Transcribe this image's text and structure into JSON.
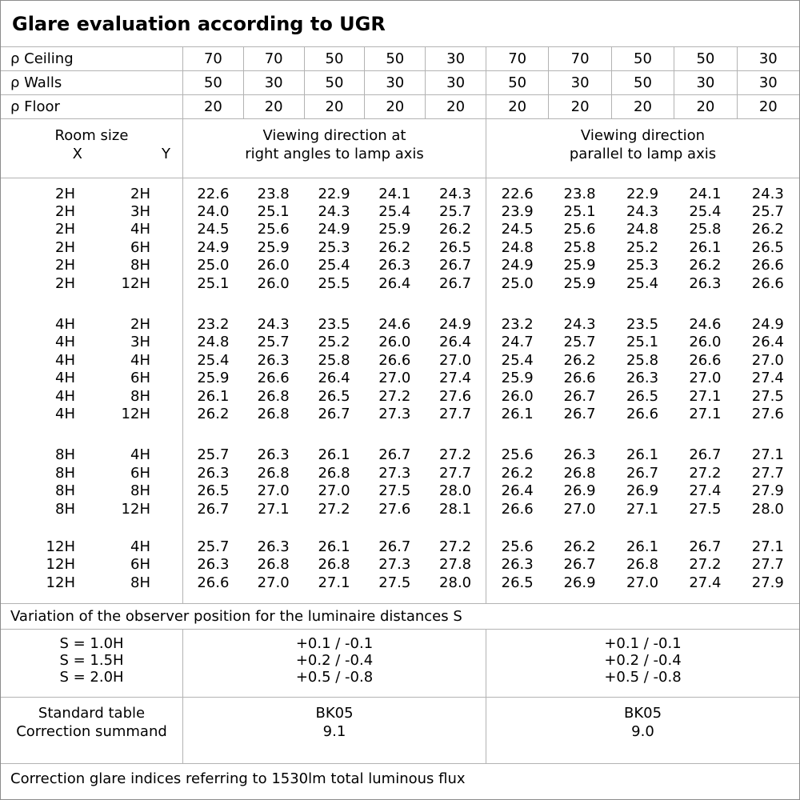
{
  "title": "Glare evaluation according to UGR",
  "colors": {
    "background": "#ffffff",
    "grid_line": "#b3b3b3",
    "outer_border": "#8c8c8c",
    "text": "#000000"
  },
  "reflectance": {
    "rows": [
      {
        "label": "ρ Ceiling",
        "values": [
          "70",
          "70",
          "50",
          "50",
          "30",
          "70",
          "70",
          "50",
          "50",
          "30"
        ]
      },
      {
        "label": "ρ Walls",
        "values": [
          "50",
          "30",
          "50",
          "30",
          "30",
          "50",
          "30",
          "50",
          "30",
          "30"
        ]
      },
      {
        "label": "ρ Floor",
        "values": [
          "20",
          "20",
          "20",
          "20",
          "20",
          "20",
          "20",
          "20",
          "20",
          "20"
        ]
      }
    ]
  },
  "room_header": {
    "room_size": "Room size",
    "x": "X",
    "y": "Y",
    "group1": [
      "Viewing direction at",
      "right angles to lamp axis"
    ],
    "group2": [
      "Viewing direction",
      "parallel to lamp axis"
    ]
  },
  "ugr_table": {
    "blocks": [
      {
        "rows": [
          {
            "x": "2H",
            "y": "2H",
            "right_angles": [
              "22.6",
              "23.8",
              "22.9",
              "24.1",
              "24.3"
            ],
            "parallel": [
              "22.6",
              "23.8",
              "22.9",
              "24.1",
              "24.3"
            ]
          },
          {
            "x": "2H",
            "y": "3H",
            "right_angles": [
              "24.0",
              "25.1",
              "24.3",
              "25.4",
              "25.7"
            ],
            "parallel": [
              "23.9",
              "25.1",
              "24.3",
              "25.4",
              "25.7"
            ]
          },
          {
            "x": "2H",
            "y": "4H",
            "right_angles": [
              "24.5",
              "25.6",
              "24.9",
              "25.9",
              "26.2"
            ],
            "parallel": [
              "24.5",
              "25.6",
              "24.8",
              "25.8",
              "26.2"
            ]
          },
          {
            "x": "2H",
            "y": "6H",
            "right_angles": [
              "24.9",
              "25.9",
              "25.3",
              "26.2",
              "26.5"
            ],
            "parallel": [
              "24.8",
              "25.8",
              "25.2",
              "26.1",
              "26.5"
            ]
          },
          {
            "x": "2H",
            "y": "8H",
            "right_angles": [
              "25.0",
              "26.0",
              "25.4",
              "26.3",
              "26.7"
            ],
            "parallel": [
              "24.9",
              "25.9",
              "25.3",
              "26.2",
              "26.6"
            ]
          },
          {
            "x": "2H",
            "y": "12H",
            "right_angles": [
              "25.1",
              "26.0",
              "25.5",
              "26.4",
              "26.7"
            ],
            "parallel": [
              "25.0",
              "25.9",
              "25.4",
              "26.3",
              "26.6"
            ]
          }
        ]
      },
      {
        "rows": [
          {
            "x": "4H",
            "y": "2H",
            "right_angles": [
              "23.2",
              "24.3",
              "23.5",
              "24.6",
              "24.9"
            ],
            "parallel": [
              "23.2",
              "24.3",
              "23.5",
              "24.6",
              "24.9"
            ]
          },
          {
            "x": "4H",
            "y": "3H",
            "right_angles": [
              "24.8",
              "25.7",
              "25.2",
              "26.0",
              "26.4"
            ],
            "parallel": [
              "24.7",
              "25.7",
              "25.1",
              "26.0",
              "26.4"
            ]
          },
          {
            "x": "4H",
            "y": "4H",
            "right_angles": [
              "25.4",
              "26.3",
              "25.8",
              "26.6",
              "27.0"
            ],
            "parallel": [
              "25.4",
              "26.2",
              "25.8",
              "26.6",
              "27.0"
            ]
          },
          {
            "x": "4H",
            "y": "6H",
            "right_angles": [
              "25.9",
              "26.6",
              "26.4",
              "27.0",
              "27.4"
            ],
            "parallel": [
              "25.9",
              "26.6",
              "26.3",
              "27.0",
              "27.4"
            ]
          },
          {
            "x": "4H",
            "y": "8H",
            "right_angles": [
              "26.1",
              "26.8",
              "26.5",
              "27.2",
              "27.6"
            ],
            "parallel": [
              "26.0",
              "26.7",
              "26.5",
              "27.1",
              "27.5"
            ]
          },
          {
            "x": "4H",
            "y": "12H",
            "right_angles": [
              "26.2",
              "26.8",
              "26.7",
              "27.3",
              "27.7"
            ],
            "parallel": [
              "26.1",
              "26.7",
              "26.6",
              "27.1",
              "27.6"
            ]
          }
        ]
      },
      {
        "rows": [
          {
            "x": "8H",
            "y": "4H",
            "right_angles": [
              "25.7",
              "26.3",
              "26.1",
              "26.7",
              "27.2"
            ],
            "parallel": [
              "25.6",
              "26.3",
              "26.1",
              "26.7",
              "27.1"
            ]
          },
          {
            "x": "8H",
            "y": "6H",
            "right_angles": [
              "26.3",
              "26.8",
              "26.8",
              "27.3",
              "27.7"
            ],
            "parallel": [
              "26.2",
              "26.8",
              "26.7",
              "27.2",
              "27.7"
            ]
          },
          {
            "x": "8H",
            "y": "8H",
            "right_angles": [
              "26.5",
              "27.0",
              "27.0",
              "27.5",
              "28.0"
            ],
            "parallel": [
              "26.4",
              "26.9",
              "26.9",
              "27.4",
              "27.9"
            ]
          },
          {
            "x": "8H",
            "y": "12H",
            "right_angles": [
              "26.7",
              "27.1",
              "27.2",
              "27.6",
              "28.1"
            ],
            "parallel": [
              "26.6",
              "27.0",
              "27.1",
              "27.5",
              "28.0"
            ]
          }
        ]
      },
      {
        "rows": [
          {
            "x": "12H",
            "y": "4H",
            "right_angles": [
              "25.7",
              "26.3",
              "26.1",
              "26.7",
              "27.2"
            ],
            "parallel": [
              "25.6",
              "26.2",
              "26.1",
              "26.7",
              "27.1"
            ]
          },
          {
            "x": "12H",
            "y": "6H",
            "right_angles": [
              "26.3",
              "26.8",
              "26.8",
              "27.3",
              "27.8"
            ],
            "parallel": [
              "26.3",
              "26.7",
              "26.8",
              "27.2",
              "27.7"
            ]
          },
          {
            "x": "12H",
            "y": "8H",
            "right_angles": [
              "26.6",
              "27.0",
              "27.1",
              "27.5",
              "28.0"
            ],
            "parallel": [
              "26.5",
              "26.9",
              "27.0",
              "27.4",
              "27.9"
            ]
          }
        ]
      }
    ]
  },
  "variation_note": "Variation of the observer position for the luminaire distances S",
  "s_variation": {
    "rows": [
      {
        "label": "S = 1.0H",
        "right_angles": "+0.1 / -0.1",
        "parallel": "+0.1 / -0.1"
      },
      {
        "label": "S = 1.5H",
        "right_angles": "+0.2 / -0.4",
        "parallel": "+0.2 / -0.4"
      },
      {
        "label": "S = 2.0H",
        "right_angles": "+0.5 / -0.8",
        "parallel": "+0.5 / -0.8"
      }
    ]
  },
  "standard": {
    "rows": [
      {
        "label": "Standard table",
        "right_angles": "BK05",
        "parallel": "BK05"
      },
      {
        "label": "Correction summand",
        "right_angles": "9.1",
        "parallel": "9.0"
      }
    ]
  },
  "footer": "Correction glare indices referring to 1530lm total luminous flux"
}
